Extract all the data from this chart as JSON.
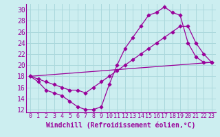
{
  "xlabel": "Windchill (Refroidissement éolien,°C)",
  "bg_color": "#cceef0",
  "grid_color": "#aad8dc",
  "line_color": "#990099",
  "xlim": [
    -0.5,
    23.5
  ],
  "ylim": [
    11.5,
    31
  ],
  "xticks": [
    0,
    1,
    2,
    3,
    4,
    5,
    6,
    7,
    8,
    9,
    10,
    11,
    12,
    13,
    14,
    15,
    16,
    17,
    18,
    19,
    20,
    21,
    22,
    23
  ],
  "yticks": [
    12,
    14,
    16,
    18,
    20,
    22,
    24,
    26,
    28,
    30
  ],
  "line1_x": [
    0,
    1,
    2,
    3,
    4,
    5,
    6,
    7,
    8,
    9,
    10,
    11,
    12,
    13,
    14,
    15,
    16,
    17,
    18,
    19,
    20,
    21,
    22,
    23
  ],
  "line1_y": [
    18,
    17,
    15.5,
    15,
    14.5,
    13.5,
    12.5,
    12,
    12,
    12.5,
    16.5,
    20,
    23,
    25,
    27,
    29,
    29.5,
    30.5,
    29.5,
    29,
    24,
    21.5,
    20.5,
    20.5
  ],
  "line2_x": [
    0,
    1,
    2,
    3,
    4,
    5,
    6,
    7,
    8,
    9,
    10,
    11,
    12,
    13,
    14,
    15,
    16,
    17,
    18,
    19,
    20,
    21,
    22,
    23
  ],
  "line2_y": [
    18,
    17.5,
    17,
    16.5,
    16,
    15.5,
    15.5,
    15,
    16,
    17,
    18,
    19,
    20,
    21,
    22,
    23,
    24,
    25,
    26,
    27,
    27,
    24,
    22,
    20.5
  ],
  "line3_x": [
    0,
    23
  ],
  "line3_y": [
    18,
    20.5
  ],
  "xlabel_fontsize": 7.0,
  "ytick_fontsize": 7,
  "xtick_fontsize": 6.0
}
